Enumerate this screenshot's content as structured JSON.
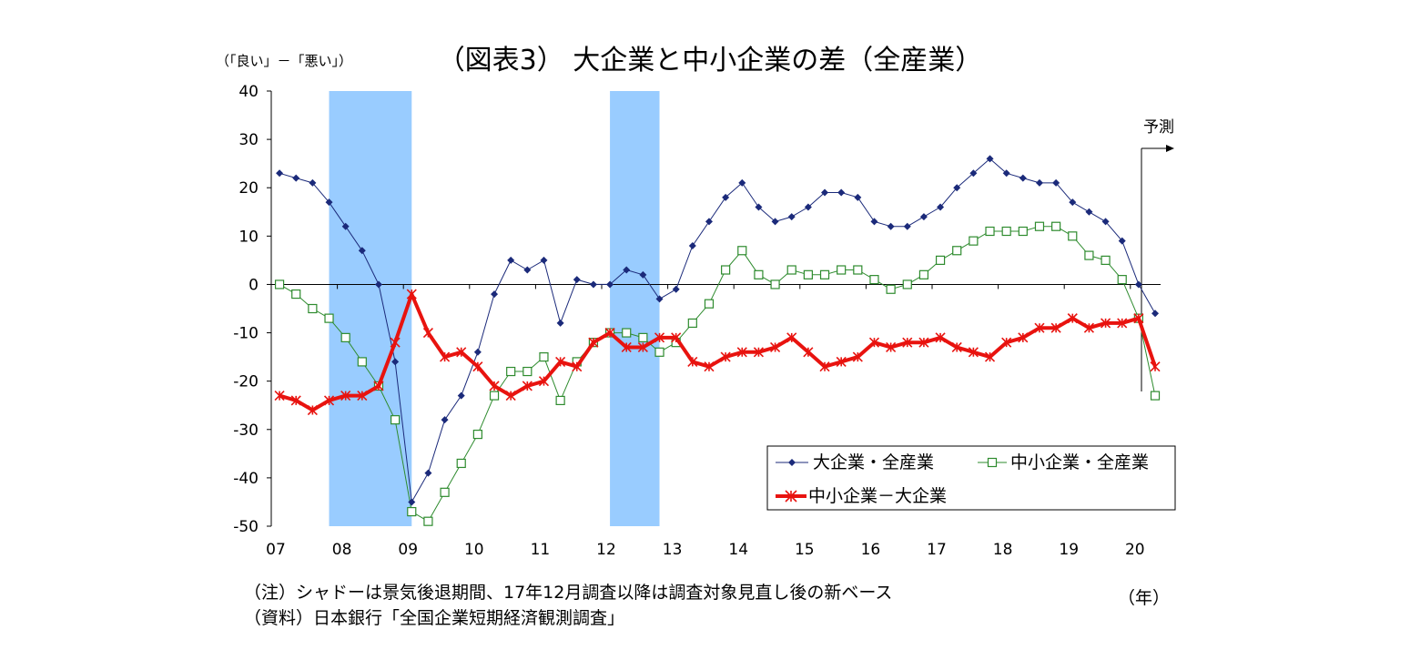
{
  "chart_data": {
    "type": "line",
    "title": "（図表3） 大企業と中小企業の差（全産業）",
    "ylabel": "（「良い」－「悪い」）",
    "xlabel": "（年）",
    "ylim": [
      -50,
      40
    ],
    "yticks": [
      40,
      30,
      20,
      10,
      0,
      -10,
      -20,
      -30,
      -40,
      -50
    ],
    "ytick_labels": [
      "40",
      "30",
      "20",
      "10",
      "0",
      "-10",
      "-20",
      "-30",
      "-40",
      "-50"
    ],
    "xtick_labels": [
      "07",
      "08",
      "09",
      "10",
      "11",
      "12",
      "13",
      "14",
      "15",
      "16",
      "17",
      "18",
      "19",
      "20"
    ],
    "x_start_year": 2007,
    "points_per_year": 4,
    "shaded_periods": [
      [
        2007.875,
        2009.125
      ],
      [
        2012.125,
        2012.875
      ]
    ],
    "forecast_label": "予測",
    "grid": false,
    "legend_position": "lower-right",
    "series": [
      {
        "name": "大企業・全産業",
        "color": "#1b2a7a",
        "marker": "diamond",
        "values": [
          23,
          22,
          21,
          17,
          12,
          7,
          0,
          -16,
          -45,
          -39,
          -28,
          -23,
          -14,
          -2,
          5,
          3,
          5,
          -8,
          1,
          0,
          0,
          3,
          2,
          -3,
          -1,
          8,
          13,
          18,
          21,
          16,
          13,
          14,
          16,
          19,
          19,
          18,
          13,
          12,
          12,
          14,
          16,
          20,
          23,
          26,
          23,
          22,
          21,
          21,
          17,
          15,
          13,
          9,
          0,
          -6
        ]
      },
      {
        "name": "中小企業・全産業",
        "color": "#2e8b2e",
        "marker": "square-open",
        "values": [
          0,
          -2,
          -5,
          -7,
          -11,
          -16,
          -21,
          -28,
          -47,
          -49,
          -43,
          -37,
          -31,
          -23,
          -18,
          -18,
          -15,
          -24,
          -16,
          -12,
          -10,
          -10,
          -11,
          -14,
          -12,
          -8,
          -4,
          3,
          7,
          2,
          0,
          3,
          2,
          2,
          3,
          3,
          1,
          -1,
          0,
          2,
          5,
          7,
          9,
          11,
          11,
          11,
          12,
          12,
          10,
          6,
          5,
          1,
          -7,
          -23
        ]
      },
      {
        "name": "中小企業－大企業",
        "color": "#e8130f",
        "marker": "asterisk",
        "values": [
          -23,
          -24,
          -26,
          -24,
          -23,
          -23,
          -21,
          -12,
          -2,
          -10,
          -15,
          -14,
          -17,
          -21,
          -23,
          -21,
          -20,
          -16,
          -17,
          -12,
          -10,
          -13,
          -13,
          -11,
          -11,
          -16,
          -17,
          -15,
          -14,
          -14,
          -13,
          -11,
          -14,
          -17,
          -16,
          -15,
          -12,
          -13,
          -12,
          -12,
          -11,
          -13,
          -14,
          -15,
          -12,
          -11,
          -9,
          -9,
          -7,
          -9,
          -8,
          -8,
          -7,
          -17
        ]
      }
    ]
  },
  "notes": [
    "（注）シャドーは景気後退期間、17年12月調査以降は調査対象見直し後の新ベース",
    "（資料）日本銀行「全国企業短期経済観測調査」"
  ]
}
